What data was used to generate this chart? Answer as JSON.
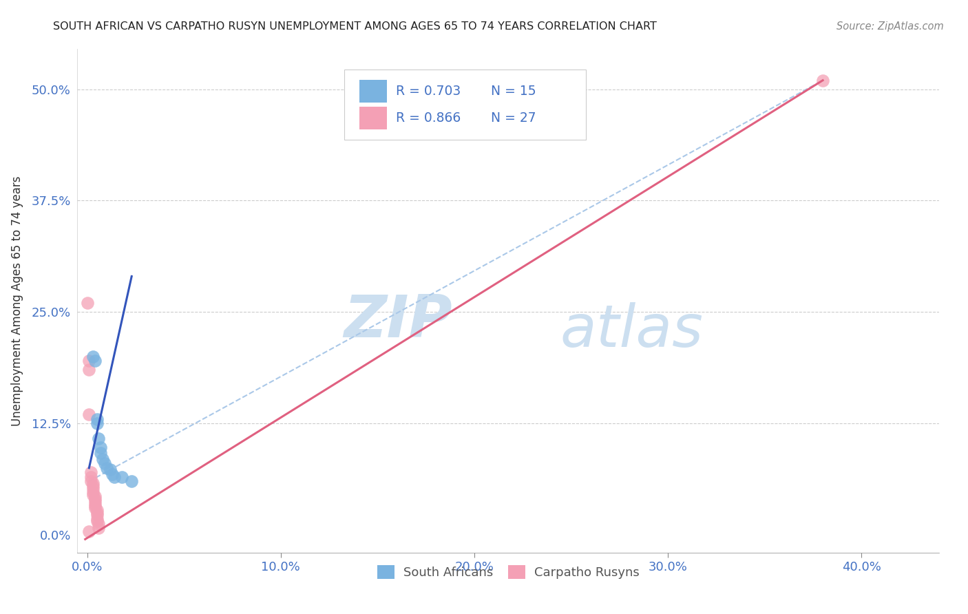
{
  "title": "SOUTH AFRICAN VS CARPATHO RUSYN UNEMPLOYMENT AMONG AGES 65 TO 74 YEARS CORRELATION CHART",
  "source": "Source: ZipAtlas.com",
  "ylabel": "Unemployment Among Ages 65 to 74 years",
  "x_tick_labels": [
    "0.0%",
    "10.0%",
    "20.0%",
    "30.0%",
    "40.0%"
  ],
  "x_tick_values": [
    0.0,
    0.1,
    0.2,
    0.3,
    0.4
  ],
  "y_tick_labels": [
    "0.0%",
    "12.5%",
    "25.0%",
    "37.5%",
    "50.0%"
  ],
  "y_tick_values": [
    0.0,
    0.125,
    0.25,
    0.375,
    0.5
  ],
  "xlim": [
    -0.005,
    0.44
  ],
  "ylim": [
    -0.02,
    0.545
  ],
  "legend_south_africans": "South Africans",
  "legend_carpatho_rusyns": "Carpatho Rusyns",
  "R_south_african": "0.703",
  "N_south_african": "15",
  "R_carpatho_rusyn": "0.866",
  "N_carpatho_rusyn": "27",
  "blue_color": "#7ab3e0",
  "pink_color": "#f4a0b5",
  "blue_line_color": "#3355bb",
  "pink_line_color": "#e06080",
  "dashed_line_color": "#aac8e8",
  "watermark_zip_color": "#ccdff0",
  "watermark_atlas_color": "#ccdff0",
  "south_african_points": [
    [
      0.003,
      0.2
    ],
    [
      0.004,
      0.195
    ],
    [
      0.005,
      0.13
    ],
    [
      0.005,
      0.125
    ],
    [
      0.006,
      0.108
    ],
    [
      0.007,
      0.098
    ],
    [
      0.007,
      0.092
    ],
    [
      0.008,
      0.085
    ],
    [
      0.009,
      0.08
    ],
    [
      0.01,
      0.075
    ],
    [
      0.012,
      0.073
    ],
    [
      0.013,
      0.068
    ],
    [
      0.014,
      0.065
    ],
    [
      0.018,
      0.065
    ],
    [
      0.023,
      0.06
    ]
  ],
  "carpatho_rusyn_points": [
    [
      0.0,
      0.26
    ],
    [
      0.001,
      0.195
    ],
    [
      0.001,
      0.185
    ],
    [
      0.001,
      0.135
    ],
    [
      0.002,
      0.07
    ],
    [
      0.002,
      0.065
    ],
    [
      0.002,
      0.06
    ],
    [
      0.003,
      0.058
    ],
    [
      0.003,
      0.055
    ],
    [
      0.003,
      0.052
    ],
    [
      0.003,
      0.048
    ],
    [
      0.003,
      0.045
    ],
    [
      0.004,
      0.043
    ],
    [
      0.004,
      0.04
    ],
    [
      0.004,
      0.038
    ],
    [
      0.004,
      0.035
    ],
    [
      0.004,
      0.032
    ],
    [
      0.004,
      0.03
    ],
    [
      0.005,
      0.028
    ],
    [
      0.005,
      0.025
    ],
    [
      0.005,
      0.022
    ],
    [
      0.005,
      0.018
    ],
    [
      0.005,
      0.015
    ],
    [
      0.006,
      0.012
    ],
    [
      0.006,
      0.008
    ],
    [
      0.001,
      0.004
    ],
    [
      0.38,
      0.51
    ]
  ],
  "blue_line_points": [
    [
      0.001,
      0.075
    ],
    [
      0.023,
      0.29
    ]
  ],
  "pink_line_points": [
    [
      -0.001,
      -0.005
    ],
    [
      0.38,
      0.51
    ]
  ],
  "dashed_line_points": [
    [
      0.001,
      0.06
    ],
    [
      0.38,
      0.51
    ]
  ]
}
